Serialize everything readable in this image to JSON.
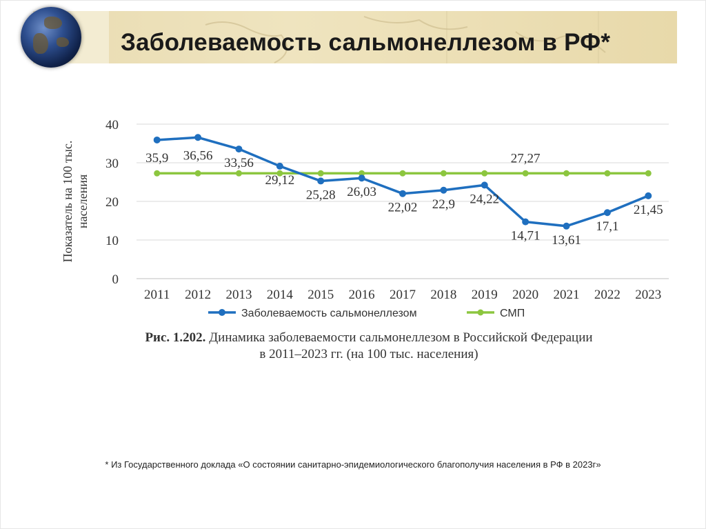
{
  "slide": {
    "title": "Заболеваемость сальмонеллезом в РФ*"
  },
  "chart_data": {
    "type": "line",
    "title": "",
    "xlabel": "",
    "ylabel": "Показатель на 100 тыс. населения",
    "ylim": [
      0,
      40
    ],
    "yticks": [
      0,
      10,
      20,
      30,
      40
    ],
    "grid": true,
    "legend_position": "bottom",
    "categories": [
      "2011",
      "2012",
      "2013",
      "2014",
      "2015",
      "2016",
      "2017",
      "2018",
      "2019",
      "2020",
      "2021",
      "2022",
      "2023"
    ],
    "series": [
      {
        "name": "Заболеваемость сальмонеллезом",
        "color": "#1f6fbf",
        "values": [
          35.9,
          36.56,
          33.56,
          29.12,
          25.28,
          26.03,
          22.02,
          22.9,
          24.22,
          14.71,
          13.61,
          17.1,
          21.45
        ],
        "labels": [
          "35,9",
          "36,56",
          "33,56",
          "29,12",
          "25,28",
          "26,03",
          "22,02",
          "22,9",
          "24,22",
          "14,71",
          "13,61",
          "17,1",
          "21,45"
        ]
      },
      {
        "name": "СМП",
        "color": "#8cc63f",
        "values": [
          27.27,
          27.27,
          27.27,
          27.27,
          27.27,
          27.27,
          27.27,
          27.27,
          27.27,
          27.27,
          27.27,
          27.27,
          27.27
        ],
        "label": "27,27"
      }
    ]
  },
  "caption": {
    "prefix": "Рис. 1.202.",
    "line1": " Динамика заболеваемости сальмонеллезом в Российской Федерации",
    "line2": "в 2011–2023 гг. (на 100 тыс. населения)"
  },
  "footnote": "* Из Государственного доклада «О состоянии санитарно-эпидемиологического благополучия населения в РФ в 2023г»"
}
